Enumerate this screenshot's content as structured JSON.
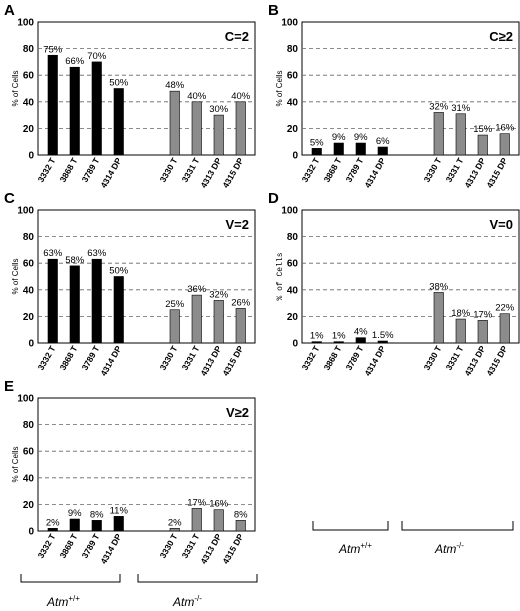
{
  "chart_data": [
    {
      "type": "bar",
      "panel": "A",
      "title": "C=2",
      "ylabel": "% of Cells",
      "ylim": [
        0,
        100
      ],
      "yticks": [
        "0",
        "20",
        "40",
        "60",
        "80",
        "100"
      ],
      "categories": [
        "3332 T",
        "3868 T",
        "3789 T",
        "4314 DP",
        "3330 T",
        "3331 T",
        "4313 DP",
        "4315 DP"
      ],
      "values": [
        75,
        66,
        70,
        50,
        48,
        40,
        30,
        40
      ],
      "labels": [
        "75%",
        "66%",
        "70%",
        "50%",
        "48%",
        "40%",
        "30%",
        "40%"
      ],
      "bar_colors": [
        "#000000",
        "#000000",
        "#000000",
        "#000000",
        "#8c8c8c",
        "#8c8c8c",
        "#8c8c8c",
        "#8c8c8c"
      ]
    },
    {
      "type": "bar",
      "panel": "B",
      "title": "C≥2",
      "ylabel": "% of Cells",
      "ylim": [
        0,
        100
      ],
      "yticks": [
        "0",
        "20",
        "40",
        "60",
        "80",
        "100"
      ],
      "categories": [
        "3332 T",
        "3868 T",
        "3789 T",
        "4314 DP",
        "3330 T",
        "3331 T",
        "4313 DP",
        "4315 DP"
      ],
      "values": [
        5,
        9,
        9,
        6,
        32,
        31,
        15,
        16
      ],
      "labels": [
        "5%",
        "9%",
        "9%",
        "6%",
        "32%",
        "31%",
        "15%",
        "16%"
      ],
      "bar_colors": [
        "#000000",
        "#000000",
        "#000000",
        "#000000",
        "#8c8c8c",
        "#8c8c8c",
        "#8c8c8c",
        "#8c8c8c"
      ]
    },
    {
      "type": "bar",
      "panel": "C",
      "title": "V=2",
      "ylabel": "% of Cells",
      "ylim": [
        0,
        100
      ],
      "yticks": [
        "0",
        "20",
        "40",
        "60",
        "80",
        "100"
      ],
      "categories": [
        "3332 T",
        "3868 T",
        "3789 T",
        "4314 DP",
        "3330 T",
        "3331 T",
        "4313 DP",
        "4315 DP"
      ],
      "values": [
        63,
        58,
        63,
        50,
        25,
        36,
        32,
        26
      ],
      "labels": [
        "63%",
        "58%",
        "63%",
        "50%",
        "25%",
        "36%",
        "32%",
        "26%"
      ],
      "bar_colors": [
        "#000000",
        "#000000",
        "#000000",
        "#000000",
        "#8c8c8c",
        "#8c8c8c",
        "#8c8c8c",
        "#8c8c8c"
      ]
    },
    {
      "type": "bar",
      "panel": "D",
      "title": "V=0",
      "ylabel": "% of Cells",
      "ylim": [
        0,
        100
      ],
      "yticks": [
        "0",
        "20",
        "40",
        "60",
        "80",
        "100"
      ],
      "categories": [
        "3332 T",
        "3868 T",
        "3789 T",
        "4314 DP",
        "3330 T",
        "3331 T",
        "4313 DP",
        "4315 DP"
      ],
      "values": [
        1,
        1,
        4,
        1.5,
        38,
        18,
        17,
        22
      ],
      "labels": [
        "1%",
        "1%",
        "4%",
        "1.5%",
        "38%",
        "18%",
        "17%",
        "22%"
      ],
      "bar_colors": [
        "#000000",
        "#000000",
        "#000000",
        "#000000",
        "#8c8c8c",
        "#8c8c8c",
        "#8c8c8c",
        "#8c8c8c"
      ]
    },
    {
      "type": "bar",
      "panel": "E",
      "title": "V≥2",
      "ylabel": "% of Cells",
      "ylim": [
        0,
        100
      ],
      "yticks": [
        "0",
        "20",
        "40",
        "60",
        "80",
        "100"
      ],
      "categories": [
        "3332 T",
        "3868 T",
        "3789 T",
        "4314 DP",
        "3330 T",
        "3331 T",
        "4313 DP",
        "4315 DP"
      ],
      "values": [
        2,
        9,
        8,
        11,
        2,
        17,
        16,
        8
      ],
      "labels": [
        "2%",
        "9%",
        "8%",
        "11%",
        "2%",
        "17%",
        "16%",
        "8%"
      ],
      "bar_colors": [
        "#000000",
        "#000000",
        "#000000",
        "#000000",
        "#8c8c8c",
        "#8c8c8c",
        "#8c8c8c",
        "#8c8c8c"
      ]
    }
  ],
  "groups": {
    "wt": {
      "base": "Atm",
      "sup": "+/+"
    },
    "ko": {
      "base": "Atm",
      "sup": "-/-"
    }
  }
}
